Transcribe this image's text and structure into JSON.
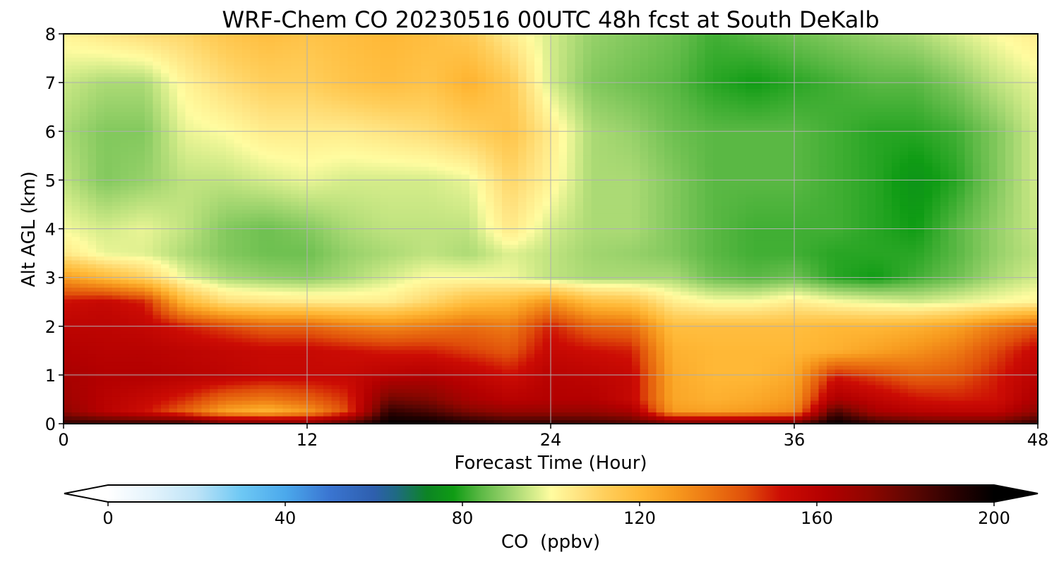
{
  "chart_data": {
    "type": "heatmap",
    "title": "WRF-Chem CO  20230516 00UTC 48h fcst at South DeKalb",
    "xlabel": "Forecast Time (Hour)",
    "ylabel": "Alt AGL (km)",
    "xlim": [
      0,
      48
    ],
    "ylim": [
      0,
      8
    ],
    "xticks": [
      0,
      12,
      24,
      36,
      48
    ],
    "yticks": [
      0,
      1,
      2,
      3,
      4,
      5,
      6,
      7,
      8
    ],
    "grid": true,
    "x": [
      0,
      2,
      4,
      6,
      8,
      10,
      12,
      14,
      16,
      18,
      20,
      22,
      24,
      26,
      28,
      30,
      32,
      34,
      36,
      38,
      40,
      42,
      44,
      46,
      48
    ],
    "y": [
      0,
      0.25,
      0.5,
      1,
      1.5,
      2,
      2.5,
      3,
      3.5,
      4,
      5,
      6,
      7,
      8
    ],
    "z": [
      [
        190,
        190,
        190,
        190,
        180,
        180,
        175,
        185,
        200,
        200,
        195,
        190,
        190,
        188,
        185,
        180,
        180,
        180,
        180,
        200,
        190,
        185,
        182,
        182,
        190
      ],
      [
        172,
        160,
        152,
        140,
        125,
        120,
        128,
        145,
        190,
        185,
        175,
        170,
        170,
        170,
        165,
        128,
        126,
        128,
        132,
        185,
        165,
        160,
        158,
        158,
        172
      ],
      [
        168,
        160,
        155,
        148,
        138,
        135,
        140,
        148,
        178,
        175,
        165,
        160,
        162,
        162,
        155,
        125,
        122,
        124,
        128,
        165,
        158,
        152,
        150,
        152,
        165
      ],
      [
        165,
        162,
        162,
        160,
        158,
        155,
        155,
        155,
        160,
        162,
        158,
        152,
        160,
        158,
        155,
        124,
        120,
        120,
        124,
        150,
        145,
        140,
        142,
        150,
        160
      ],
      [
        162,
        160,
        160,
        158,
        156,
        154,
        154,
        152,
        150,
        150,
        146,
        142,
        155,
        152,
        150,
        122,
        120,
        120,
        120,
        122,
        126,
        130,
        135,
        145,
        155
      ],
      [
        158,
        158,
        156,
        150,
        145,
        140,
        140,
        135,
        132,
        135,
        138,
        135,
        150,
        140,
        138,
        118,
        118,
        118,
        118,
        120,
        120,
        122,
        126,
        135,
        142
      ],
      [
        152,
        155,
        150,
        120,
        108,
        106,
        105,
        104,
        104,
        110,
        118,
        120,
        130,
        118,
        116,
        104,
        100,
        100,
        104,
        100,
        98,
        96,
        98,
        100,
        102
      ],
      [
        128,
        120,
        112,
        98,
        92,
        90,
        89,
        92,
        96,
        100,
        100,
        99,
        94,
        92,
        92,
        92,
        86,
        84,
        86,
        80,
        78,
        82,
        86,
        92,
        96
      ],
      [
        105,
        98,
        97,
        92,
        88,
        86,
        86,
        90,
        92,
        94,
        92,
        97,
        94,
        91,
        90,
        88,
        84,
        82,
        82,
        80,
        80,
        80,
        84,
        90,
        94
      ],
      [
        99,
        96,
        98,
        94,
        88,
        86,
        88,
        92,
        94,
        94,
        94,
        105,
        96,
        92,
        92,
        88,
        84,
        82,
        82,
        82,
        80,
        78,
        84,
        90,
        95
      ],
      [
        94,
        88,
        90,
        94,
        94,
        96,
        98,
        96,
        96,
        96,
        98,
        110,
        102,
        92,
        92,
        88,
        84,
        84,
        84,
        82,
        80,
        76,
        80,
        88,
        96
      ],
      [
        92,
        88,
        88,
        98,
        100,
        104,
        104,
        104,
        106,
        108,
        112,
        116,
        104,
        92,
        90,
        86,
        84,
        84,
        84,
        82,
        80,
        80,
        82,
        88,
        96
      ],
      [
        95,
        92,
        92,
        102,
        108,
        112,
        112,
        116,
        118,
        116,
        122,
        114,
        96,
        88,
        86,
        84,
        80,
        78,
        80,
        82,
        84,
        84,
        88,
        94,
        98
      ],
      [
        102,
        105,
        108,
        110,
        115,
        118,
        116,
        118,
        120,
        118,
        114,
        104,
        96,
        90,
        88,
        86,
        82,
        84,
        86,
        88,
        90,
        92,
        96,
        100,
        104
      ]
    ],
    "colorbar": {
      "label": "CO  (ppbv)",
      "min": 0,
      "max": 200,
      "ticks": [
        0,
        40,
        80,
        120,
        160,
        200
      ],
      "extend": "both",
      "orientation": "horizontal",
      "colors": [
        [
          0,
          "#ffffff"
        ],
        [
          10,
          "#e3f3fc"
        ],
        [
          20,
          "#bde3f7"
        ],
        [
          30,
          "#6ec8f4"
        ],
        [
          40,
          "#4ba9ec"
        ],
        [
          50,
          "#3a75d1"
        ],
        [
          60,
          "#2e5fae"
        ],
        [
          65,
          "#1f6a83"
        ],
        [
          72,
          "#0c8424"
        ],
        [
          78,
          "#0f9c14"
        ],
        [
          84,
          "#5ab844"
        ],
        [
          90,
          "#97d16a"
        ],
        [
          96,
          "#d4ec8a"
        ],
        [
          100,
          "#fffca0"
        ],
        [
          106,
          "#ffe482"
        ],
        [
          112,
          "#ffcf5c"
        ],
        [
          120,
          "#ffb836"
        ],
        [
          128,
          "#f79a1e"
        ],
        [
          136,
          "#ec7612"
        ],
        [
          144,
          "#e04f0a"
        ],
        [
          152,
          "#cc0c04"
        ],
        [
          162,
          "#b30000"
        ],
        [
          172,
          "#8e0600"
        ],
        [
          182,
          "#5a0602"
        ],
        [
          192,
          "#260101"
        ],
        [
          200,
          "#000000"
        ]
      ]
    }
  }
}
